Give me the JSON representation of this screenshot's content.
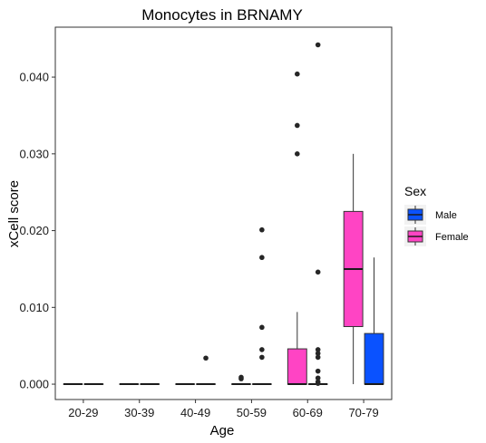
{
  "chart_data": {
    "type": "boxplot",
    "title": "Monocytes in BRNAMY",
    "xlabel": "Age",
    "ylabel": "xCell score",
    "categories": [
      "20-29",
      "30-39",
      "40-49",
      "50-59",
      "60-69",
      "70-79"
    ],
    "ylim": [
      -0.002,
      0.0465
    ],
    "yticks": [
      0.0,
      0.01,
      0.02,
      0.03,
      0.04
    ],
    "ytick_labels": [
      "0.000",
      "0.010",
      "0.020",
      "0.030",
      "0.040"
    ],
    "grid": false,
    "legend": {
      "title": "Sex",
      "placement": "right",
      "entries": [
        "Male",
        "Female"
      ]
    },
    "series": [
      {
        "name": "Female",
        "color": "#FF44C4",
        "boxes": [
          {
            "category": "20-29",
            "min": 0,
            "q1": 0,
            "median": 0,
            "q3": 0,
            "max": 0,
            "outliers": []
          },
          {
            "category": "30-39",
            "min": 0,
            "q1": 0,
            "median": 0,
            "q3": 0,
            "max": 0,
            "outliers": []
          },
          {
            "category": "40-49",
            "min": 0,
            "q1": 0,
            "median": 0,
            "q3": 0,
            "max": 0,
            "outliers": []
          },
          {
            "category": "50-59",
            "min": 0,
            "q1": 0,
            "median": 0,
            "q3": 0,
            "max": 0,
            "outliers": [
              0.0007,
              0.0009
            ]
          },
          {
            "category": "60-69",
            "min": 0,
            "q1": 0,
            "median": 0,
            "q3": 0.0046,
            "max": 0.0094,
            "outliers": [
              0.03,
              0.0337,
              0.0404
            ]
          },
          {
            "category": "70-79",
            "min": 0,
            "q1": 0.0075,
            "median": 0.015,
            "q3": 0.0225,
            "max": 0.03,
            "outliers": []
          }
        ]
      },
      {
        "name": "Male",
        "color": "#0A52FF",
        "boxes": [
          {
            "category": "20-29",
            "min": 0,
            "q1": 0,
            "median": 0,
            "q3": 0,
            "max": 0,
            "outliers": []
          },
          {
            "category": "30-39",
            "min": 0,
            "q1": 0,
            "median": 0,
            "q3": 0,
            "max": 0,
            "outliers": []
          },
          {
            "category": "40-49",
            "min": 0,
            "q1": 0,
            "median": 0,
            "q3": 0,
            "max": 0,
            "outliers": [
              0.0034
            ]
          },
          {
            "category": "50-59",
            "min": 0,
            "q1": 0,
            "median": 0,
            "q3": 0,
            "max": 0,
            "outliers": [
              0.0035,
              0.0045,
              0.0074,
              0.0165,
              0.0201
            ]
          },
          {
            "category": "60-69",
            "min": 0,
            "q1": 0,
            "median": 0,
            "q3": 0,
            "max": 0,
            "outliers": [
              0.0001,
              0.0003,
              0.0008,
              0.0017,
              0.0035,
              0.004,
              0.0045,
              0.0146,
              0.0442
            ]
          },
          {
            "category": "70-79",
            "min": 0,
            "q1": 0,
            "median": 0,
            "q3": 0.0066,
            "max": 0.0165,
            "outliers": []
          }
        ]
      }
    ]
  }
}
